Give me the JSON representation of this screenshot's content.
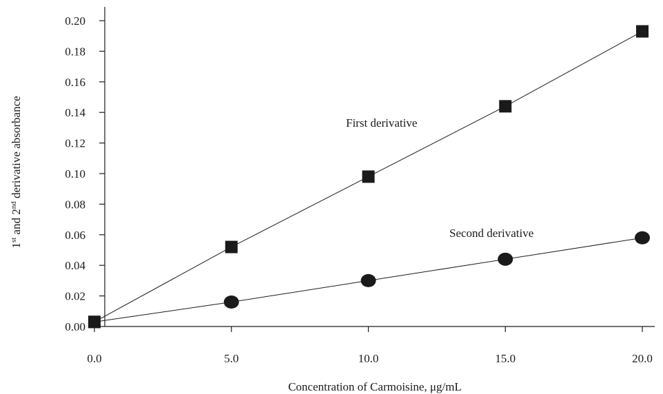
{
  "chart_data": {
    "type": "line",
    "title": "",
    "xlabel": "Concentration of Carmoisine, μg/mL",
    "ylabel_parts": {
      "first_num": "1",
      "first_sup": "st",
      "mid": " and 2",
      "second_sup": "nd",
      "rest": " derivative absorbance"
    },
    "xlim": [
      0,
      20
    ],
    "ylim": [
      0,
      0.2
    ],
    "x_ticks": [
      0,
      5,
      10,
      15,
      20
    ],
    "x_tick_labels": [
      "0.0",
      "5.0",
      "10.0",
      "15.0",
      "20.0"
    ],
    "y_ticks": [
      0,
      0.02,
      0.04,
      0.06,
      0.08,
      0.1,
      0.12,
      0.14,
      0.16,
      0.18,
      0.2
    ],
    "y_tick_labels": [
      "0.00",
      "0.02",
      "0.04",
      "0.06",
      "0.08",
      "0.10",
      "0.12",
      "0.14",
      "0.16",
      "0.18",
      "0.20"
    ],
    "grid": false,
    "legend": "none",
    "series": [
      {
        "name": "First derivative",
        "marker": "square",
        "x": [
          0,
          5,
          10,
          15,
          20
        ],
        "y": [
          0.003,
          0.052,
          0.098,
          0.144,
          0.193
        ]
      },
      {
        "name": "Second derivative",
        "marker": "circle",
        "x": [
          0,
          5,
          10,
          15,
          20
        ],
        "y": [
          0.003,
          0.016,
          0.03,
          0.044,
          0.058
        ]
      }
    ]
  }
}
